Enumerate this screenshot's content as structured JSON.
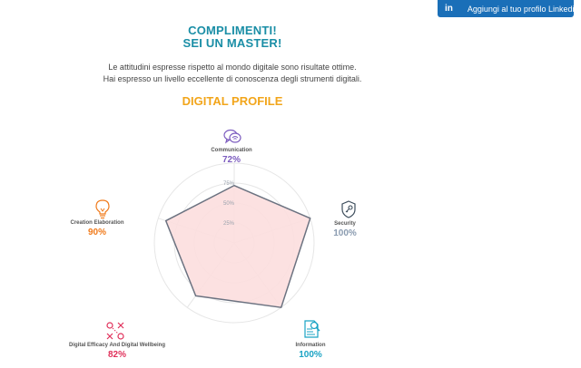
{
  "linkedin": {
    "icon_text": "in",
    "label": "Aggiungi al tuo profilo Linkedin"
  },
  "header": {
    "line1": "COMPLIMENTI!",
    "line2": "SEI UN MASTER!"
  },
  "description": {
    "line1": "Le attitudini espresse rispetto al mondo digitale sono risultate ottime.",
    "line2": "Hai espresso un livello eccellente di conoscenza degli strumenti digitali."
  },
  "section_title": "DIGITAL PROFILE",
  "chart_data": {
    "type": "radar",
    "title": "",
    "axes": [
      "Communication",
      "Security",
      "Information",
      "Digital Efficacy And Digital Wellbeing",
      "Creation Elaboration"
    ],
    "values": [
      72,
      100,
      100,
      82,
      90
    ],
    "value_labels": [
      "72%",
      "100%",
      "100%",
      "82%",
      "90%"
    ],
    "ring_labels": [
      "25%",
      "50%",
      "75%"
    ],
    "range": [
      0,
      100
    ],
    "fill_color": "#fcdede",
    "stroke_color": "#6b7280",
    "axis_colors": [
      "#7c5cbf",
      "#8a9bb0",
      "#1aa3c4",
      "#e0305a",
      "#f07a1a"
    ]
  },
  "icons": {
    "communication": "chat-bubbles-icon",
    "security": "shield-key-icon",
    "information": "document-search-icon",
    "wellbeing": "tictactoe-icon",
    "creation": "lightbulb-icon"
  }
}
